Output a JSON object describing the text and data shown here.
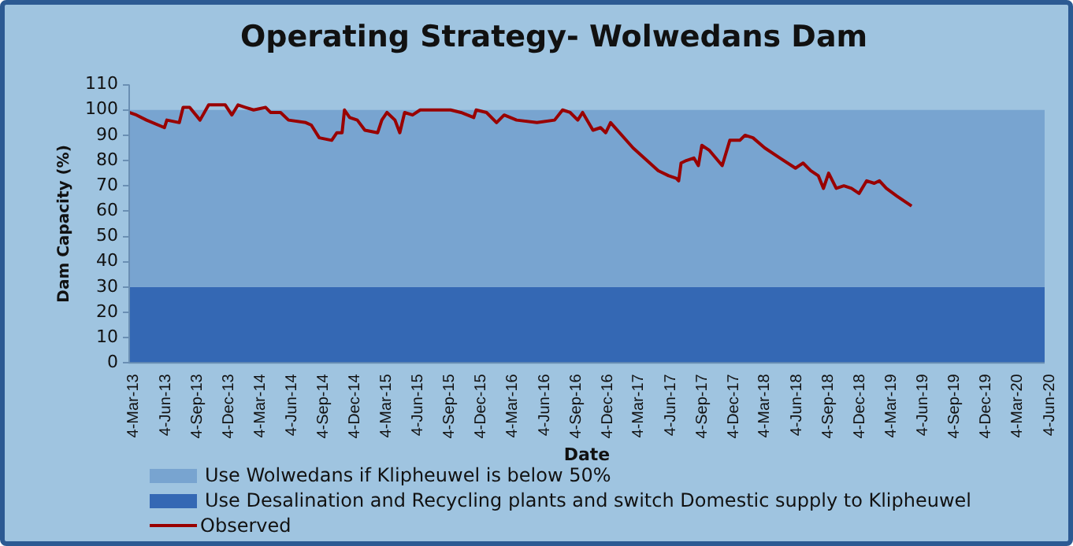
{
  "chart_data": {
    "type": "line",
    "title": "Operating Strategy- Wolwedans Dam",
    "xlabel": "Date",
    "ylabel": "Dam Capacity (%)",
    "xlim": [
      "2013-03-04",
      "2020-06-04"
    ],
    "xticks": [
      {
        "value": "2013-03-04",
        "label": "4-Mar-13"
      },
      {
        "value": "2013-06-04",
        "label": "4-Jun-13"
      },
      {
        "value": "2013-09-04",
        "label": "4-Sep-13"
      },
      {
        "value": "2013-12-04",
        "label": "4-Dec-13"
      },
      {
        "value": "2014-03-04",
        "label": "4-Mar-14"
      },
      {
        "value": "2014-06-04",
        "label": "4-Jun-14"
      },
      {
        "value": "2014-09-04",
        "label": "4-Sep-14"
      },
      {
        "value": "2014-12-04",
        "label": "4-Dec-14"
      },
      {
        "value": "2015-03-04",
        "label": "4-Mar-15"
      },
      {
        "value": "2015-06-04",
        "label": "4-Jun-15"
      },
      {
        "value": "2015-09-04",
        "label": "4-Sep-15"
      },
      {
        "value": "2015-12-04",
        "label": "4-Dec-15"
      },
      {
        "value": "2016-03-04",
        "label": "4-Mar-16"
      },
      {
        "value": "2016-06-04",
        "label": "4-Jun-16"
      },
      {
        "value": "2016-09-04",
        "label": "4-Sep-16"
      },
      {
        "value": "2016-12-04",
        "label": "4-Dec-16"
      },
      {
        "value": "2017-03-04",
        "label": "4-Mar-17"
      },
      {
        "value": "2017-06-04",
        "label": "4-Jun-17"
      },
      {
        "value": "2017-09-04",
        "label": "4-Sep-17"
      },
      {
        "value": "2017-12-04",
        "label": "4-Dec-17"
      },
      {
        "value": "2018-03-04",
        "label": "4-Mar-18"
      },
      {
        "value": "2018-06-04",
        "label": "4-Jun-18"
      },
      {
        "value": "2018-09-04",
        "label": "4-Sep-18"
      },
      {
        "value": "2018-12-04",
        "label": "4-Dec-18"
      },
      {
        "value": "2019-03-04",
        "label": "4-Mar-19"
      },
      {
        "value": "2019-06-04",
        "label": "4-Jun-19"
      },
      {
        "value": "2019-09-04",
        "label": "4-Sep-19"
      },
      {
        "value": "2019-12-04",
        "label": "4-Dec-19"
      },
      {
        "value": "2020-03-04",
        "label": "4-Mar-20"
      },
      {
        "value": "2020-06-04",
        "label": "4-Jun-20"
      }
    ],
    "ylim": [
      0,
      110
    ],
    "yticks": [
      0,
      10,
      20,
      30,
      40,
      50,
      60,
      70,
      80,
      90,
      100,
      110
    ],
    "grid": false,
    "legend": "bottom",
    "marker": "none",
    "line_style": "solid",
    "bands": [
      {
        "axis": "y",
        "from": 30,
        "to": 100,
        "label": "Use Wolwedans if Klipheuwel is below 50%",
        "color": "#78a4d0"
      },
      {
        "axis": "y",
        "from": 0,
        "to": 30,
        "label": "Use Desalination and Recycling plants and switch Domestic supply to Klipheuwel",
        "color": "#3468b4"
      }
    ],
    "series": [
      {
        "name": "Observed",
        "color": "#990000",
        "x": [
          "2013-03-04",
          "2013-03-25",
          "2013-04-23",
          "2013-06-14",
          "2013-06-21",
          "2013-07-27",
          "2013-08-07",
          "2013-08-26",
          "2013-09-25",
          "2013-10-20",
          "2013-12-07",
          "2013-12-26",
          "2014-01-13",
          "2014-02-04",
          "2014-02-27",
          "2014-04-03",
          "2014-04-17",
          "2014-05-16",
          "2014-06-08",
          "2014-07-28",
          "2014-08-13",
          "2014-09-05",
          "2014-10-11",
          "2014-10-26",
          "2014-11-10",
          "2014-11-17",
          "2014-12-02",
          "2014-12-24",
          "2015-01-15",
          "2015-02-21",
          "2015-03-05",
          "2015-03-20",
          "2015-04-12",
          "2015-04-26",
          "2015-05-10",
          "2015-06-02",
          "2015-06-24",
          "2015-07-23",
          "2015-09-20",
          "2015-10-20",
          "2015-11-26",
          "2015-12-03",
          "2016-01-02",
          "2016-01-31",
          "2016-02-22",
          "2016-03-29",
          "2016-05-27",
          "2016-07-17",
          "2016-08-09",
          "2016-08-31",
          "2016-09-22",
          "2016-10-06",
          "2016-11-05",
          "2016-11-27",
          "2016-12-12",
          "2016-12-26",
          "2017-03-01",
          "2017-05-13",
          "2017-06-12",
          "2017-07-04",
          "2017-07-11",
          "2017-07-18",
          "2017-08-02",
          "2017-08-24",
          "2017-09-06",
          "2017-09-16",
          "2017-10-08",
          "2017-11-14",
          "2017-12-06",
          "2018-01-04",
          "2018-01-19",
          "2018-02-11",
          "2018-03-17",
          "2018-04-30",
          "2018-06-14",
          "2018-07-06",
          "2018-07-28",
          "2018-08-19",
          "2018-09-03",
          "2018-09-18",
          "2018-10-10",
          "2018-11-01",
          "2018-11-23",
          "2018-12-15",
          "2019-01-06",
          "2019-01-28",
          "2019-02-12",
          "2019-03-04",
          "2019-04-03",
          "2019-05-16"
        ],
        "values": [
          99,
          98,
          96,
          93,
          96,
          95,
          101,
          101,
          96,
          102,
          102,
          98,
          102,
          101,
          100,
          101,
          99,
          99,
          96,
          95,
          94,
          89,
          88,
          91,
          91,
          100,
          97,
          96,
          92,
          91,
          96,
          99,
          96,
          91,
          99,
          98,
          100,
          100,
          100,
          99,
          97,
          100,
          99,
          95,
          98,
          96,
          95,
          96,
          100,
          99,
          96,
          99,
          92,
          93,
          91,
          95,
          85,
          76,
          74,
          73,
          72,
          79,
          80,
          81,
          78,
          86,
          84,
          78,
          88,
          88,
          90,
          89,
          85,
          81,
          77,
          79,
          76,
          74,
          69,
          75,
          69,
          70,
          69,
          67,
          72,
          71,
          72,
          69,
          66,
          62
        ]
      }
    ]
  }
}
